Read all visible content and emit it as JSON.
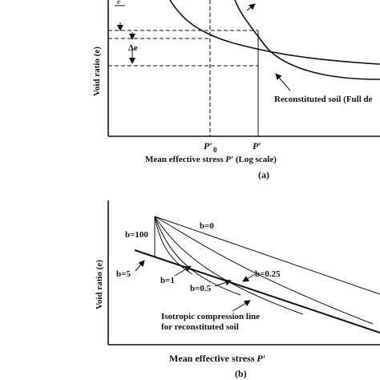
{
  "panel_a": {
    "ylabel": "Void ratio (e)",
    "xlabel_main": "Mean effective stress ",
    "xlabel_var": "P′",
    "xlabel_suffix": " (Log scale)",
    "delta_e": "Δe",
    "p0_tick": "P′",
    "p0_sub": "0",
    "p_tick": "P′",
    "curve_label": "Reconstituted soil (Full de",
    "corner_label": "e",
    "caption": "(a)"
  },
  "panel_b": {
    "ylabel": "Void ratio (e)",
    "xlabel_main": "Mean effective stress ",
    "xlabel_var": "P′",
    "b_labels": [
      "b=0",
      "b=100",
      "b=5",
      "b=1",
      "b=0.5",
      "b=0.25"
    ],
    "icl_line1": "Isotropic compression line",
    "icl_line2": "for reconstituted soil",
    "caption": "(b)"
  }
}
